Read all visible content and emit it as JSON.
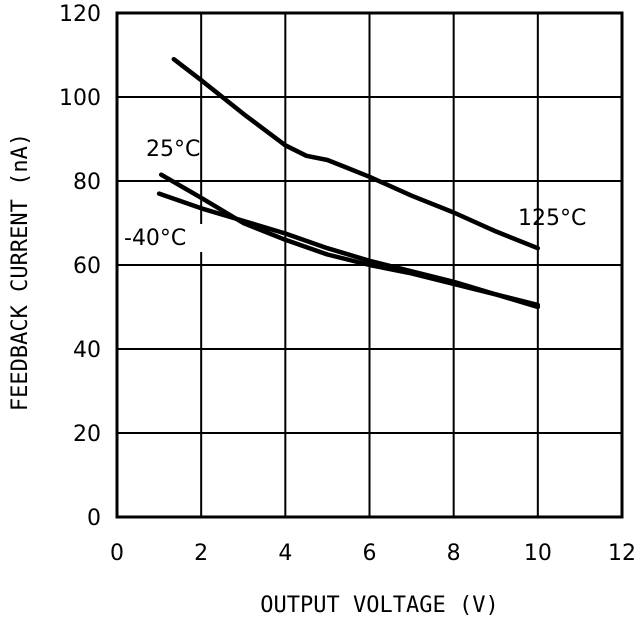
{
  "chart_data": {
    "type": "line",
    "title": "",
    "xlabel": "OUTPUT VOLTAGE (V)",
    "ylabel": "FEEDBACK CURRENT (nA)",
    "xlim": [
      0,
      12
    ],
    "ylim": [
      0,
      120
    ],
    "xticks": [
      0,
      2,
      4,
      6,
      8,
      10,
      12
    ],
    "yticks": [
      0,
      20,
      40,
      60,
      80,
      100,
      120
    ],
    "grid": true,
    "legend": "none",
    "series": [
      {
        "name": "125°C",
        "x": [
          1.35,
          2,
          3,
          4,
          4.5,
          5,
          5.5,
          6,
          7,
          8,
          9,
          10
        ],
        "y": [
          109,
          104,
          96,
          88.5,
          86,
          85,
          83,
          81,
          76.5,
          72.5,
          68,
          64
        ]
      },
      {
        "name": "25°C",
        "x": [
          1.05,
          2,
          3,
          4,
          5,
          6,
          7,
          8,
          9,
          10
        ],
        "y": [
          81.5,
          76,
          70,
          66,
          62.5,
          60,
          58,
          55.5,
          53,
          50.5
        ]
      },
      {
        "name": "-40°C",
        "x": [
          1.0,
          2,
          3,
          4,
          5,
          6,
          7,
          8,
          9,
          10
        ],
        "y": [
          77,
          73.5,
          70.5,
          67.5,
          64,
          61,
          58.5,
          56,
          53,
          50
        ]
      }
    ]
  }
}
